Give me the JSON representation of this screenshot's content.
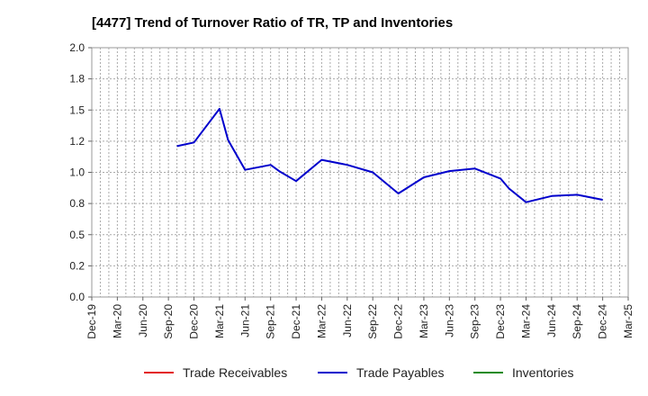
{
  "chart_data": {
    "type": "line",
    "title": "[4477]  Trend of Turnover Ratio of TR, TP and Inventories",
    "xlabel": "",
    "ylabel": "",
    "ylim": [
      0,
      2.0
    ],
    "y_ticks": [
      "0.0",
      "0.2",
      "0.5",
      "0.8",
      "1.0",
      "1.2",
      "1.5",
      "1.8",
      "2.0"
    ],
    "x_ticks": [
      "Dec-19",
      "Mar-20",
      "Jun-20",
      "Sep-20",
      "Dec-20",
      "Mar-21",
      "Jun-21",
      "Sep-21",
      "Dec-21",
      "Mar-22",
      "Jun-22",
      "Sep-22",
      "Dec-22",
      "Mar-23",
      "Jun-23",
      "Sep-23",
      "Dec-23",
      "Mar-24",
      "Jun-24",
      "Sep-24",
      "Dec-24",
      "Mar-25"
    ],
    "grid": true,
    "legend_position": "bottom",
    "series": [
      {
        "name": "Trade Receivables",
        "color": "#e31a1c",
        "points": []
      },
      {
        "name": "Trade Payables",
        "color": "#0000cc",
        "points": [
          {
            "x": "Oct-20",
            "y": 1.21
          },
          {
            "x": "Dec-20",
            "y": 1.24
          },
          {
            "x": "Mar-21",
            "y": 1.51
          },
          {
            "x": "Apr-21",
            "y": 1.26
          },
          {
            "x": "Jun-21",
            "y": 1.02
          },
          {
            "x": "Sep-21",
            "y": 1.06
          },
          {
            "x": "Oct-21",
            "y": 1.01
          },
          {
            "x": "Dec-21",
            "y": 0.93
          },
          {
            "x": "Mar-22",
            "y": 1.1
          },
          {
            "x": "Jun-22",
            "y": 1.06
          },
          {
            "x": "Sep-22",
            "y": 1.0
          },
          {
            "x": "Dec-22",
            "y": 0.83
          },
          {
            "x": "Mar-23",
            "y": 0.96
          },
          {
            "x": "Jun-23",
            "y": 1.01
          },
          {
            "x": "Sep-23",
            "y": 1.03
          },
          {
            "x": "Dec-23",
            "y": 0.95
          },
          {
            "x": "Jan-24",
            "y": 0.87
          },
          {
            "x": "Mar-24",
            "y": 0.76
          },
          {
            "x": "Jun-24",
            "y": 0.81
          },
          {
            "x": "Sep-24",
            "y": 0.82
          },
          {
            "x": "Dec-24",
            "y": 0.78
          }
        ]
      },
      {
        "name": "Inventories",
        "color": "#1a8a1a",
        "points": []
      }
    ]
  }
}
